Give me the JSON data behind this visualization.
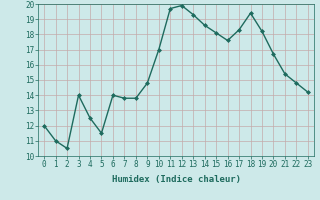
{
  "x": [
    0,
    1,
    2,
    3,
    4,
    5,
    6,
    7,
    8,
    9,
    10,
    11,
    12,
    13,
    14,
    15,
    16,
    17,
    18,
    19,
    20,
    21,
    22,
    23
  ],
  "y": [
    12.0,
    11.0,
    10.5,
    14.0,
    12.5,
    11.5,
    14.0,
    13.8,
    13.8,
    14.8,
    17.0,
    19.7,
    19.9,
    19.3,
    18.6,
    18.1,
    17.6,
    18.3,
    19.4,
    18.2,
    16.7,
    15.4,
    14.8,
    14.2
  ],
  "line_color": "#1e6b5e",
  "marker": "D",
  "marker_size": 2,
  "line_width": 1.0,
  "bg_color": "#cde9e9",
  "grid_color": "#b0d4d4",
  "xlabel": "Humidex (Indice chaleur)",
  "xlabel_fontsize": 6.5,
  "tick_fontsize": 5.5,
  "ylim": [
    10,
    20
  ],
  "yticks": [
    10,
    11,
    12,
    13,
    14,
    15,
    16,
    17,
    18,
    19,
    20
  ],
  "xticks": [
    0,
    1,
    2,
    3,
    4,
    5,
    6,
    7,
    8,
    9,
    10,
    11,
    12,
    13,
    14,
    15,
    16,
    17,
    18,
    19,
    20,
    21,
    22,
    23
  ]
}
